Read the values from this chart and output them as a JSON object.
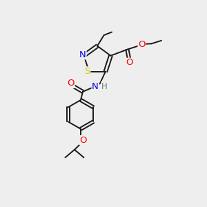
{
  "bg_color": "#eeeeee",
  "bond_color": "#1a1a1a",
  "atom_colors": {
    "N": "#0000ee",
    "S": "#cccc00",
    "O": "#ff0000",
    "H": "#608080",
    "C": "#1a1a1a"
  },
  "font_size": 8.5,
  "bond_width": 1.4,
  "figsize": [
    3.0,
    3.0
  ],
  "dpi": 100
}
